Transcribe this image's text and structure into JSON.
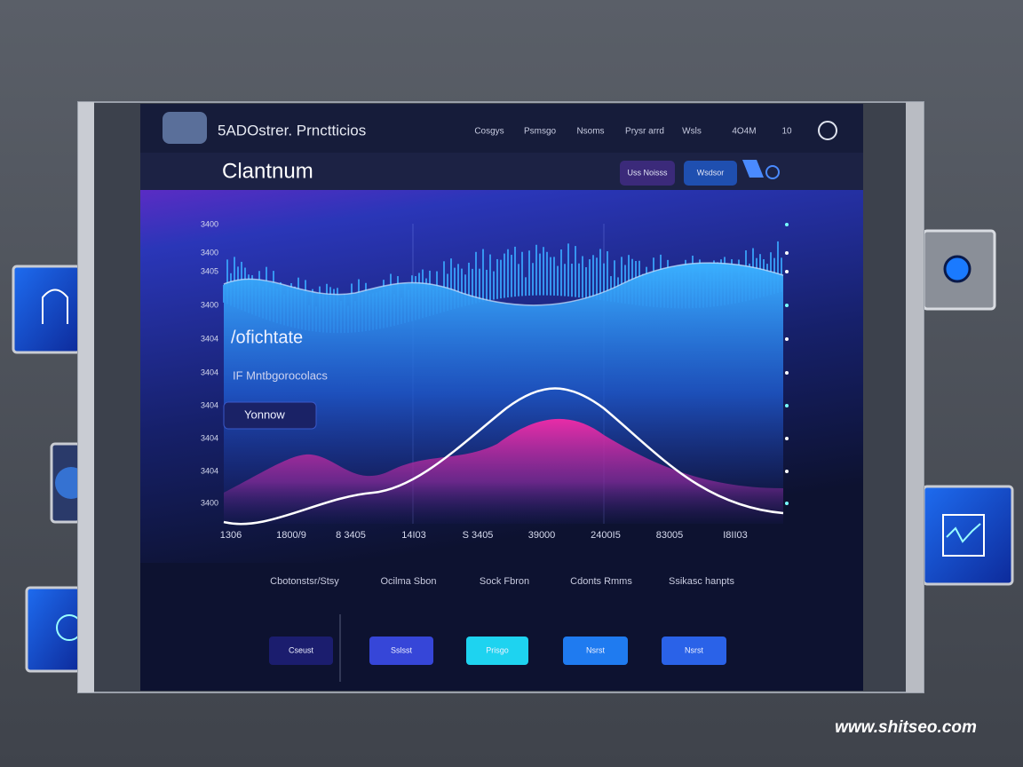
{
  "header": {
    "brand": "5ADOstrer. Prnctticios",
    "nav": [
      "Cosgys",
      "Psmsgo",
      "Nsoms",
      "Prysr arrd",
      "Wsls",
      "4O4M",
      "10"
    ]
  },
  "toolbar": {
    "title": "Clantnum",
    "buttons": [
      "Uss Noisss",
      "Wsdsor"
    ]
  },
  "chart": {
    "y_labels": [
      "3400",
      "3400",
      "3405",
      "3400",
      "3404",
      "3404",
      "3404",
      "3404",
      "3404",
      "3400"
    ],
    "x_labels": [
      "1306",
      "1800/9",
      "8 3405",
      "14I03",
      "S 3405",
      "39000",
      "2400I5",
      "83005",
      "I8II03"
    ],
    "overlay": [
      "/ofichtate",
      "IF Mntbgorocolacs",
      "Yonnow"
    ]
  },
  "footer": {
    "labels": [
      "Cbotonstsr/Stsy",
      "Ocilma Sbon",
      "Sock Fbron",
      "Cdonts Rmms",
      "Ssikasc hanpts"
    ],
    "buttons": [
      "Cseust",
      "Sslsst",
      "Prisgo",
      "Nsrst",
      "Nsrst"
    ]
  },
  "watermark": "www.shitseo.com"
}
